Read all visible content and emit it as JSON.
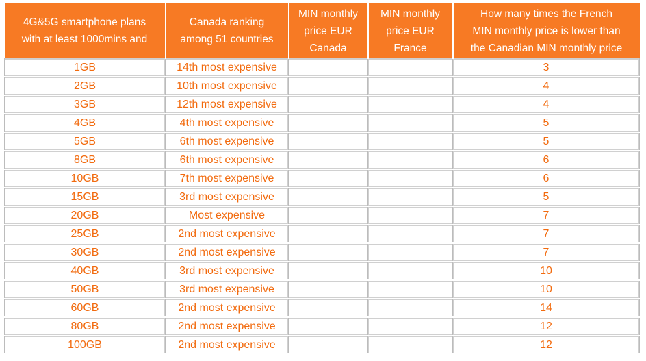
{
  "table": {
    "headers": [
      {
        "lines": [
          "4G&5G smartphone plans",
          "with at least 1000mins and"
        ]
      },
      {
        "lines": [
          "Canada ranking",
          "among 51 countries"
        ]
      },
      {
        "lines": [
          "MIN monthly",
          "price EUR",
          "Canada"
        ]
      },
      {
        "lines": [
          "MIN monthly",
          "price EUR",
          "France"
        ]
      },
      {
        "lines": [
          "How many times the French",
          "MIN monthly price is lower than",
          "the Canadian MIN monthly price"
        ]
      }
    ],
    "rows": [
      {
        "plan": "1GB",
        "ranking": "14th most expensive",
        "price_canada": "",
        "price_france": "",
        "times_lower": "3"
      },
      {
        "plan": "2GB",
        "ranking": "10th most expensive",
        "price_canada": "",
        "price_france": "",
        "times_lower": "4"
      },
      {
        "plan": "3GB",
        "ranking": "12th most expensive",
        "price_canada": "",
        "price_france": "",
        "times_lower": "4"
      },
      {
        "plan": "4GB",
        "ranking": "4th most expensive",
        "price_canada": "",
        "price_france": "",
        "times_lower": "5"
      },
      {
        "plan": "5GB",
        "ranking": "6th most expensive",
        "price_canada": "",
        "price_france": "",
        "times_lower": "5"
      },
      {
        "plan": "8GB",
        "ranking": "6th most expensive",
        "price_canada": "",
        "price_france": "",
        "times_lower": "6"
      },
      {
        "plan": "10GB",
        "ranking": "7th most expensive",
        "price_canada": "",
        "price_france": "",
        "times_lower": "6"
      },
      {
        "plan": "15GB",
        "ranking": "3rd most expensive",
        "price_canada": "",
        "price_france": "",
        "times_lower": "5"
      },
      {
        "plan": "20GB",
        "ranking": "Most expensive",
        "price_canada": "",
        "price_france": "",
        "times_lower": "7"
      },
      {
        "plan": "25GB",
        "ranking": "2nd most expensive",
        "price_canada": "",
        "price_france": "",
        "times_lower": "7"
      },
      {
        "plan": "30GB",
        "ranking": "2nd most expensive",
        "price_canada": "",
        "price_france": "",
        "times_lower": "7"
      },
      {
        "plan": "40GB",
        "ranking": "3rd most expensive",
        "price_canada": "",
        "price_france": "",
        "times_lower": "10"
      },
      {
        "plan": "50GB",
        "ranking": "3rd most expensive",
        "price_canada": "",
        "price_france": "",
        "times_lower": "10"
      },
      {
        "plan": "60GB",
        "ranking": "2nd most expensive",
        "price_canada": "",
        "price_france": "",
        "times_lower": "14"
      },
      {
        "plan": "80GB",
        "ranking": "2nd most expensive",
        "price_canada": "",
        "price_france": "",
        "times_lower": "12"
      },
      {
        "plan": "100GB",
        "ranking": "2nd most expensive",
        "price_canada": "",
        "price_france": "",
        "times_lower": "12"
      }
    ],
    "colors": {
      "header_bg": "#f77a24",
      "header_text": "#ffffff",
      "cell_text": "#f26b0f",
      "cell_border": "#bcbcbc"
    }
  }
}
